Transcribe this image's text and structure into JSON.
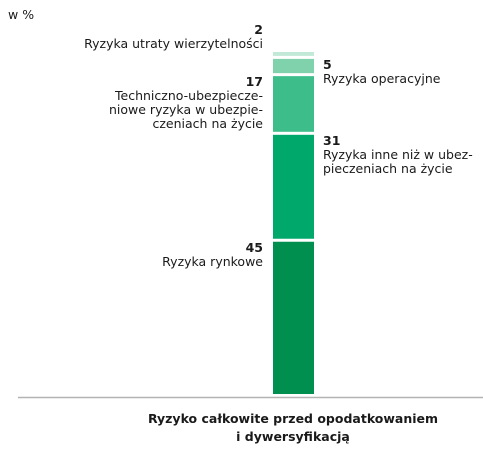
{
  "chart_data": {
    "type": "stacked-bar",
    "y_label": "w %",
    "categories": [
      [
        "Ryzyko całkowite przed opodatkowaniem",
        "i dywersyfikacją"
      ]
    ],
    "ylim": [
      0,
      100
    ],
    "series": [
      {
        "name": [
          "Ryzyka rynkowe"
        ],
        "color": "#008f4f",
        "values": [
          45
        ]
      },
      {
        "name": [
          "Ryzyka inne niż w ubez-",
          "pieczeniach na życie"
        ],
        "color": "#00a86b",
        "values": [
          31
        ]
      },
      {
        "name": [
          "Techniczno-ubezpiecze-",
          "niowe ryzyka w ubezpie-",
          "czeniach na życie"
        ],
        "color": "#3dbd8a",
        "values": [
          17
        ]
      },
      {
        "name": [
          "Ryzyka operacyjne"
        ],
        "color": "#80d2ad",
        "values": [
          5
        ]
      },
      {
        "name": [
          "Ryzyka utraty wierzytelności"
        ],
        "color": "#c2e9d7",
        "values": [
          2
        ]
      }
    ]
  }
}
